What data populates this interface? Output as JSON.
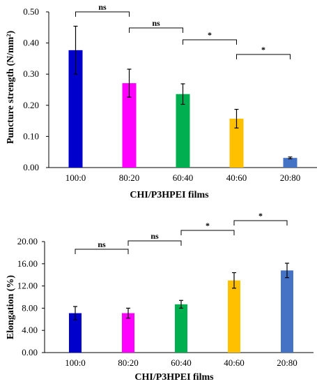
{
  "chart_data": [
    {
      "type": "bar",
      "title": "",
      "categories": [
        "100:0",
        "80:20",
        "60:40",
        "40:60",
        "20:80"
      ],
      "values": [
        0.377,
        0.271,
        0.236,
        0.157,
        0.031
      ],
      "errors": [
        0.077,
        0.045,
        0.033,
        0.03,
        0.003
      ],
      "colors": [
        "#0000CC",
        "#FF00FF",
        "#00B050",
        "#FFC000",
        "#4472C4"
      ],
      "xlabel": "CHI/P3HPEI films",
      "ylabel": "Puncture strength (N/mm²)",
      "ylim": [
        0,
        0.5
      ],
      "yticks": [
        "0.00",
        "0.10",
        "0.20",
        "0.30",
        "0.40",
        "0.50"
      ],
      "grid": false,
      "significance": [
        {
          "from": 0,
          "to": 1,
          "label": "ns"
        },
        {
          "from": 1,
          "to": 2,
          "label": "ns"
        },
        {
          "from": 2,
          "to": 3,
          "label": "*"
        },
        {
          "from": 3,
          "to": 4,
          "label": "*"
        }
      ]
    },
    {
      "type": "bar",
      "title": "",
      "categories": [
        "100:0",
        "80:20",
        "60:40",
        "40:60",
        "20:80"
      ],
      "values": [
        7.1,
        7.1,
        8.7,
        13.0,
        14.8
      ],
      "errors": [
        1.2,
        0.9,
        0.7,
        1.4,
        1.3
      ],
      "colors": [
        "#0000CC",
        "#FF00FF",
        "#00B050",
        "#FFC000",
        "#4472C4"
      ],
      "xlabel": "CHI/P3HPEI films",
      "ylabel": "Elongation (%)",
      "ylim": [
        0,
        20
      ],
      "yticks": [
        "0.00",
        "4.00",
        "8.00",
        "12.00",
        "16.00",
        "20.00"
      ],
      "grid": false,
      "significance": [
        {
          "from": 0,
          "to": 1,
          "label": "ns"
        },
        {
          "from": 1,
          "to": 2,
          "label": "ns"
        },
        {
          "from": 2,
          "to": 3,
          "label": "*"
        },
        {
          "from": 3,
          "to": 4,
          "label": "*"
        }
      ]
    }
  ]
}
